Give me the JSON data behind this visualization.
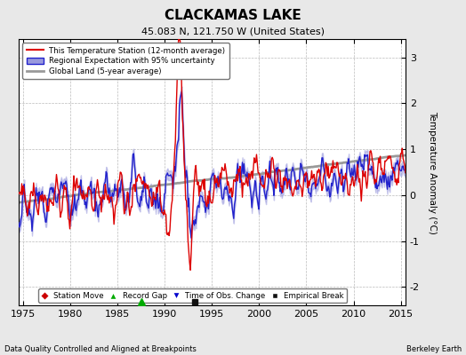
{
  "title": "CLACKAMAS LAKE",
  "subtitle": "45.083 N, 121.750 W (United States)",
  "xlabel_note": "Data Quality Controlled and Aligned at Breakpoints",
  "credit": "Berkeley Earth",
  "ylabel": "Temperature Anomaly (°C)",
  "xlim": [
    1974.5,
    2015.5
  ],
  "ylim": [
    -2.4,
    3.4
  ],
  "yticks": [
    -2,
    -1,
    0,
    1,
    2,
    3
  ],
  "xticks": [
    1975,
    1980,
    1985,
    1990,
    1995,
    2000,
    2005,
    2010,
    2015
  ],
  "bg_color": "#e8e8e8",
  "plot_bg_color": "#ffffff",
  "grid_color": "#bbbbbb",
  "station_color": "#dd0000",
  "regional_color": "#2222cc",
  "regional_fill": "#9999dd",
  "global_color": "#999999",
  "seed": 17
}
